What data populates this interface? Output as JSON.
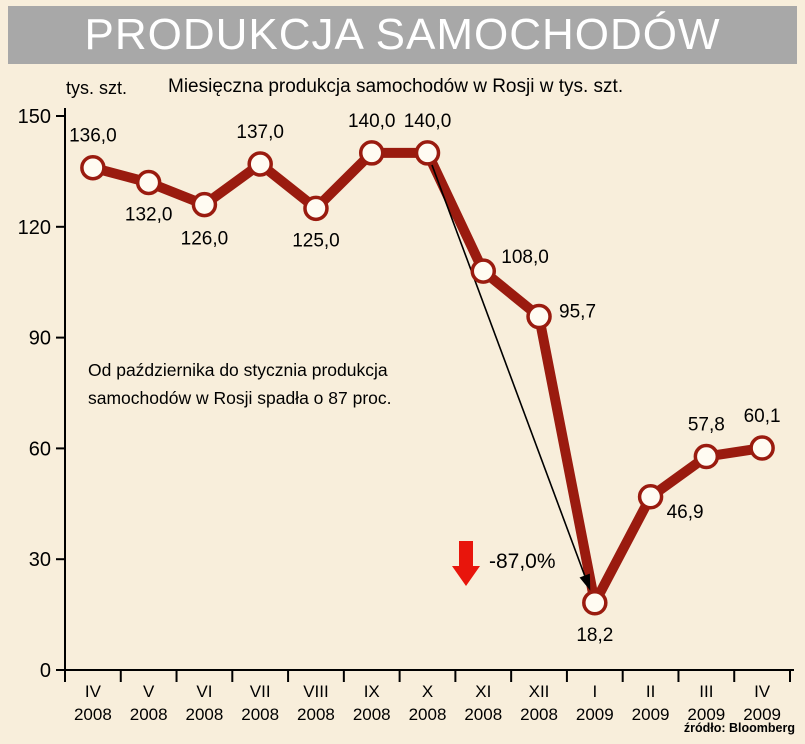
{
  "header": {
    "title": "PRODUKCJA SAMOCHODÓW"
  },
  "chart": {
    "unit_label": "tys. szt.",
    "subtitle": "Miesięczna produkcja samochodów w Rosji w tys. szt.",
    "annotation": {
      "line1": "Od października do stycznia produkcja",
      "line2": "samochodów w Rosji spadła o 87 proc."
    },
    "drop_label": "-87,0%",
    "source": "źródło: Bloomberg"
  },
  "chart_data": {
    "type": "line",
    "title": "Miesięczna produkcja samochodów w Rosji w tys. szt.",
    "xlabel": "",
    "ylabel": "tys. szt.",
    "ylim": [
      0,
      150
    ],
    "yticks": [
      0,
      30,
      60,
      90,
      120,
      150
    ],
    "grid": false,
    "legend": false,
    "categories_month": [
      "IV",
      "V",
      "VI",
      "VII",
      "VIII",
      "IX",
      "X",
      "XI",
      "XII",
      "I",
      "II",
      "III",
      "IV"
    ],
    "categories_year": [
      "2008",
      "2008",
      "2008",
      "2008",
      "2008",
      "2008",
      "2008",
      "2008",
      "2008",
      "2009",
      "2009",
      "2009",
      "2009"
    ],
    "values": [
      136.0,
      132.0,
      126.0,
      137.0,
      125.0,
      140.0,
      140.0,
      108.0,
      95.7,
      18.2,
      46.9,
      57.8,
      60.1
    ],
    "value_labels": [
      "136,0",
      "132,0",
      "126,0",
      "137,0",
      "125,0",
      "140,0",
      "140,0",
      "108,0",
      "95,7",
      "18,2",
      "46,9",
      "57,8",
      "60,1"
    ],
    "label_offsets": [
      [
        0,
        -26,
        "middle"
      ],
      [
        0,
        38,
        "middle"
      ],
      [
        0,
        40,
        "middle"
      ],
      [
        0,
        -26,
        "middle"
      ],
      [
        0,
        38,
        "middle"
      ],
      [
        0,
        -26,
        "middle"
      ],
      [
        0,
        -26,
        "middle"
      ],
      [
        18,
        -8,
        "start"
      ],
      [
        20,
        1,
        "start"
      ],
      [
        0,
        38,
        "middle"
      ],
      [
        16,
        21,
        "start"
      ],
      [
        0,
        -26,
        "middle"
      ],
      [
        0,
        -26,
        "middle"
      ]
    ],
    "line_color": "#9A1B0F",
    "marker_fill": "#FFFBF2",
    "drop_indicator_color": "#E8150C",
    "drop_arrow": {
      "from_index": 6,
      "to_index": 9
    },
    "drop_percent": -87.0
  }
}
